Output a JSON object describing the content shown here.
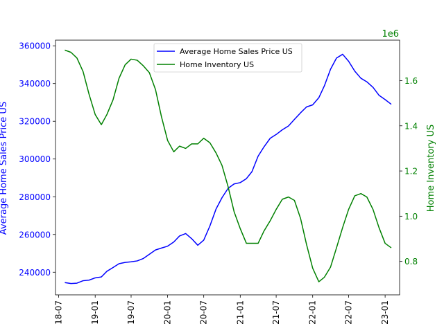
{
  "chart_data": {
    "type": "line",
    "dual_axis": true,
    "x_ticks": [
      "18-07",
      "19-01",
      "19-07",
      "20-01",
      "20-07",
      "21-01",
      "21-07",
      "22-01",
      "22-07",
      "23-01"
    ],
    "xlim": [
      "2018-06-15",
      "2023-03-15"
    ],
    "left_axis": {
      "label": "Average Home Sales Price US",
      "color": "#0000ff",
      "ylim": [
        228000,
        363000
      ],
      "ticks": [
        240000,
        260000,
        280000,
        300000,
        320000,
        340000,
        360000
      ],
      "tick_labels": [
        "240000",
        "260000",
        "280000",
        "300000",
        "320000",
        "340000",
        "360000"
      ]
    },
    "right_axis": {
      "label": "Home Inventory US",
      "color": "#008000",
      "offset_label": "1e6",
      "ylim": [
        0.652,
        1.779
      ],
      "ticks": [
        0.8,
        1.0,
        1.2,
        1.4,
        1.6
      ],
      "tick_labels": [
        "0.8",
        "1.0",
        "1.2",
        "1.4",
        "1.6"
      ]
    },
    "legend_position": "top-center",
    "grid": false,
    "series": [
      {
        "name": "Average Home Sales Price US",
        "axis": "left",
        "color": "#0000ff",
        "x": [
          "2018-08",
          "2018-09",
          "2018-10",
          "2018-11",
          "2018-12",
          "2019-01",
          "2019-02",
          "2019-03",
          "2019-04",
          "2019-05",
          "2019-06",
          "2019-07",
          "2019-08",
          "2019-09",
          "2019-10",
          "2019-11",
          "2019-12",
          "2020-01",
          "2020-02",
          "2020-03",
          "2020-04",
          "2020-05",
          "2020-06",
          "2020-07",
          "2020-08",
          "2020-09",
          "2020-10",
          "2020-11",
          "2020-12",
          "2021-01",
          "2021-02",
          "2021-03",
          "2021-04",
          "2021-05",
          "2021-06",
          "2021-07",
          "2021-08",
          "2021-09",
          "2021-10",
          "2021-11",
          "2021-12",
          "2022-01",
          "2022-02",
          "2022-03",
          "2022-04",
          "2022-05",
          "2022-06",
          "2022-07",
          "2022-08",
          "2022-09",
          "2022-10",
          "2022-11",
          "2022-12",
          "2023-01",
          "2023-02"
        ],
        "values": [
          234500,
          234000,
          234200,
          235500,
          235800,
          237000,
          237500,
          240500,
          242500,
          244500,
          245200,
          245500,
          246000,
          247300,
          249500,
          251800,
          252800,
          253800,
          256000,
          259200,
          260500,
          257800,
          254300,
          257000,
          264500,
          273500,
          279500,
          284500,
          286800,
          287500,
          289600,
          293300,
          301500,
          306500,
          311000,
          313000,
          315500,
          317500,
          321000,
          324500,
          327600,
          328700,
          332500,
          338800,
          347600,
          353500,
          355500,
          351800,
          346600,
          342800,
          340900,
          338000,
          333800,
          331500,
          329000
        ]
      },
      {
        "name": "Home Inventory US",
        "axis": "right",
        "color": "#008000",
        "x": [
          "2018-08",
          "2018-09",
          "2018-10",
          "2018-11",
          "2018-12",
          "2019-01",
          "2019-02",
          "2019-03",
          "2019-04",
          "2019-05",
          "2019-06",
          "2019-07",
          "2019-08",
          "2019-09",
          "2019-10",
          "2019-11",
          "2019-12",
          "2020-01",
          "2020-02",
          "2020-03",
          "2020-04",
          "2020-05",
          "2020-06",
          "2020-07",
          "2020-08",
          "2020-09",
          "2020-10",
          "2020-11",
          "2020-12",
          "2021-01",
          "2021-02",
          "2021-03",
          "2021-04",
          "2021-05",
          "2021-06",
          "2021-07",
          "2021-08",
          "2021-09",
          "2021-10",
          "2021-11",
          "2021-12",
          "2022-01",
          "2022-02",
          "2022-03",
          "2022-04",
          "2022-05",
          "2022-06",
          "2022-07",
          "2022-08",
          "2022-09",
          "2022-10",
          "2022-11",
          "2022-12",
          "2023-01",
          "2023-02"
        ],
        "values": [
          1.735,
          1.725,
          1.7,
          1.64,
          1.54,
          1.45,
          1.405,
          1.45,
          1.515,
          1.61,
          1.67,
          1.695,
          1.69,
          1.665,
          1.635,
          1.56,
          1.44,
          1.335,
          1.285,
          1.31,
          1.3,
          1.32,
          1.32,
          1.345,
          1.325,
          1.28,
          1.225,
          1.13,
          1.02,
          0.945,
          0.88,
          0.88,
          0.88,
          0.935,
          0.98,
          1.03,
          1.075,
          1.085,
          1.07,
          0.99,
          0.875,
          0.77,
          0.71,
          0.73,
          0.775,
          0.86,
          0.95,
          1.03,
          1.09,
          1.1,
          1.085,
          1.03,
          0.95,
          0.88,
          0.86
        ]
      }
    ]
  }
}
